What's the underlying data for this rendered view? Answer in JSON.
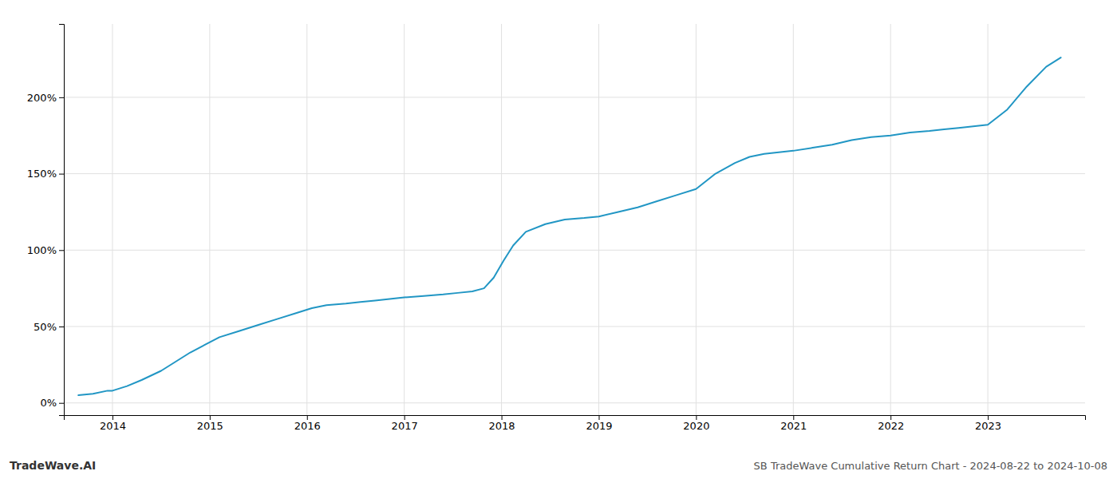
{
  "chart_data": {
    "type": "line",
    "x": [
      2013.65,
      2013.8,
      2013.95,
      2014.0,
      2014.15,
      2014.3,
      2014.5,
      2014.65,
      2014.8,
      2014.95,
      2015.1,
      2015.3,
      2015.5,
      2015.7,
      2015.9,
      2016.05,
      2016.2,
      2016.4,
      2016.55,
      2016.7,
      2016.85,
      2017.0,
      2017.2,
      2017.4,
      2017.55,
      2017.7,
      2017.82,
      2017.92,
      2018.02,
      2018.12,
      2018.25,
      2018.45,
      2018.65,
      2018.85,
      2019.0,
      2019.2,
      2019.4,
      2019.6,
      2019.8,
      2020.0,
      2020.2,
      2020.4,
      2020.55,
      2020.7,
      2020.85,
      2021.0,
      2021.2,
      2021.4,
      2021.6,
      2021.8,
      2022.0,
      2022.2,
      2022.4,
      2022.55,
      2022.7,
      2022.85,
      2023.0,
      2023.2,
      2023.4,
      2023.6,
      2023.75
    ],
    "values": [
      5,
      6,
      8,
      8,
      11,
      15,
      21,
      27,
      33,
      38,
      43,
      47,
      51,
      55,
      59,
      62,
      64,
      65,
      66,
      67,
      68,
      69,
      70,
      71,
      72,
      73,
      75,
      82,
      93,
      103,
      112,
      117,
      120,
      121,
      122,
      125,
      128,
      132,
      136,
      140,
      150,
      157,
      161,
      163,
      164,
      165,
      167,
      169,
      172,
      174,
      175,
      177,
      178,
      179,
      180,
      181,
      182,
      192,
      207,
      220,
      226
    ],
    "color": "#2196c4",
    "xlim": [
      2013.5,
      2024.0
    ],
    "xticks": [
      2014,
      2015,
      2016,
      2017,
      2018,
      2019,
      2020,
      2021,
      2022,
      2023
    ],
    "ylim": [
      -8,
      248
    ],
    "yticks": [
      {
        "value": 0,
        "label": "0%"
      },
      {
        "value": 50,
        "label": "50%"
      },
      {
        "value": 100,
        "label": "100%"
      },
      {
        "value": 150,
        "label": "150%"
      },
      {
        "value": 200,
        "label": "200%"
      }
    ],
    "grid": true,
    "annotations": [
      "TradeWave.AI",
      "SB TradeWave Cumulative Return Chart - 2024-08-22 to 2024-10-08"
    ]
  }
}
